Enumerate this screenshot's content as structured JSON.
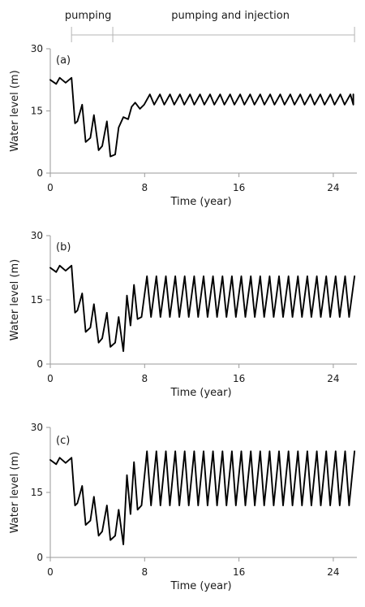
{
  "phases": [
    {
      "label": "pumping",
      "start": 1.8,
      "end": 5.3
    },
    {
      "label": "pumping and injection",
      "start": 5.3,
      "end": 25.8
    }
  ],
  "colors": {
    "line": "#000000",
    "axis": "#9a9a9a",
    "phase_line": "#b5b5b5"
  },
  "chart_data": [
    {
      "type": "line",
      "panel_label": "(a)",
      "xlabel": "Time (year)",
      "ylabel": "Water level (m)",
      "xlim": [
        0,
        26
      ],
      "ylim": [
        0,
        30
      ],
      "xticks": [
        0,
        8,
        16,
        24
      ],
      "yticks": [
        0,
        15,
        30
      ],
      "grid": false,
      "series": [
        {
          "x": [
            0,
            0.5,
            0.8,
            1.3,
            1.8,
            2.1,
            2.3,
            2.7,
            3.0,
            3.4,
            3.7,
            4.1,
            4.4,
            4.8,
            5.1,
            5.5,
            5.8,
            6.2,
            6.6,
            6.9,
            7.2,
            7.6
          ],
          "y": [
            22.5,
            21.5,
            23.0,
            21.8,
            23.0,
            12.0,
            12.5,
            16.5,
            7.5,
            8.5,
            14.0,
            5.5,
            6.5,
            12.5,
            4.0,
            4.5,
            11.0,
            13.5,
            13.0,
            16.0,
            17.0,
            15.5
          ]
        },
        {
          "type": "oscillation",
          "start": 7.6,
          "end": 25.7,
          "period": 0.85,
          "max": 19.0,
          "min": 16.5
        }
      ]
    },
    {
      "type": "line",
      "panel_label": "(b)",
      "xlabel": "Time (year)",
      "ylabel": "Water level (m)",
      "xlim": [
        0,
        26
      ],
      "ylim": [
        0,
        30
      ],
      "xticks": [
        0,
        8,
        16,
        24
      ],
      "yticks": [
        0,
        15,
        30
      ],
      "grid": false,
      "series": [
        {
          "x": [
            0,
            0.5,
            0.8,
            1.3,
            1.8,
            2.1,
            2.3,
            2.7,
            3.0,
            3.4,
            3.7,
            4.1,
            4.4,
            4.8,
            5.1,
            5.5,
            5.8,
            6.2,
            6.5,
            6.8,
            7.1,
            7.4
          ],
          "y": [
            22.5,
            21.5,
            23.0,
            21.8,
            23.0,
            12.0,
            12.5,
            16.5,
            7.5,
            8.5,
            14.0,
            5.0,
            6.0,
            12.0,
            4.0,
            5.0,
            11.0,
            3.0,
            16.0,
            9.0,
            18.5,
            10.5
          ]
        },
        {
          "type": "oscillation",
          "start": 7.4,
          "end": 25.8,
          "period": 0.8,
          "max": 20.5,
          "min": 11.0
        }
      ]
    },
    {
      "type": "line",
      "panel_label": "(c)",
      "xlabel": "Time (year)",
      "ylabel": "Water level (m)",
      "xlim": [
        0,
        26
      ],
      "ylim": [
        0,
        30
      ],
      "xticks": [
        0,
        8,
        16,
        24
      ],
      "yticks": [
        0,
        15,
        30
      ],
      "grid": false,
      "series": [
        {
          "x": [
            0,
            0.5,
            0.8,
            1.3,
            1.8,
            2.1,
            2.3,
            2.7,
            3.0,
            3.4,
            3.7,
            4.1,
            4.4,
            4.8,
            5.1,
            5.5,
            5.8,
            6.2,
            6.5,
            6.8,
            7.1,
            7.4
          ],
          "y": [
            22.5,
            21.5,
            23.0,
            21.8,
            23.0,
            12.0,
            12.5,
            16.5,
            7.5,
            8.5,
            14.0,
            5.0,
            6.0,
            12.0,
            4.0,
            5.0,
            11.0,
            3.0,
            19.0,
            10.0,
            22.0,
            11.0
          ]
        },
        {
          "type": "oscillation",
          "start": 7.4,
          "end": 25.8,
          "period": 0.8,
          "max": 24.5,
          "min": 12.0
        }
      ]
    }
  ]
}
